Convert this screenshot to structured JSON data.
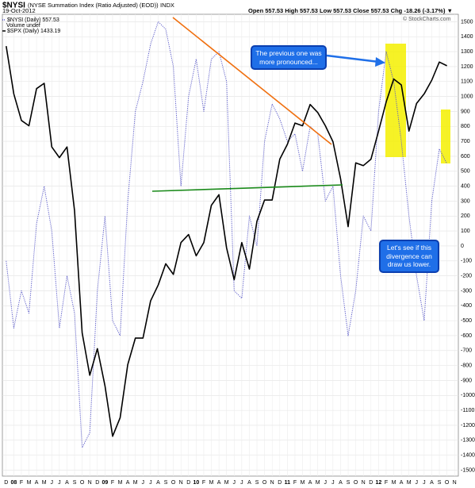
{
  "chart_data": {
    "type": "line",
    "symbol": "$NYSI",
    "title": "(NYSE Summation Index (Ratio Adjusted) (EOD))",
    "exchange": "INDX",
    "date": "19-Oct-2012",
    "quote": "Open 557.53  High 557.53  Low 557.53  Close 557.53  Chg -18.26 (-3.17%) ▼",
    "source": "© StockCharts.com",
    "volume_label": "Volume undef",
    "annotations": [
      "The previous one was more pronounced...",
      "Let's see if this divergence can draw us lower."
    ],
    "categories": [
      "D",
      "08",
      "F",
      "M",
      "A",
      "M",
      "J",
      "J",
      "A",
      "S",
      "O",
      "N",
      "D",
      "09",
      "F",
      "M",
      "A",
      "M",
      "J",
      "J",
      "A",
      "S",
      "O",
      "N",
      "D",
      "10",
      "F",
      "M",
      "A",
      "M",
      "J",
      "J",
      "A",
      "S",
      "O",
      "N",
      "D",
      "11",
      "F",
      "M",
      "A",
      "M",
      "J",
      "J",
      "A",
      "S",
      "O",
      "N",
      "D",
      "12",
      "F",
      "M",
      "A",
      "M",
      "J",
      "J",
      "A",
      "S",
      "O",
      "N"
    ],
    "series": [
      {
        "name": "$NYSI (Daily) 557.53",
        "color": "#5a5ac8",
        "values": [
          -100,
          -550,
          -300,
          -450,
          150,
          400,
          100,
          -550,
          -200,
          -450,
          -1350,
          -1250,
          -300,
          200,
          -500,
          -600,
          300,
          900,
          1100,
          1350,
          1500,
          1450,
          1200,
          400,
          1000,
          1250,
          900,
          1250,
          1300,
          1100,
          -300,
          -350,
          200,
          0,
          700,
          950,
          850,
          700,
          750,
          500,
          800,
          750,
          300,
          400,
          -200,
          -600,
          -300,
          200,
          100,
          900,
          1300,
          1100,
          700,
          200,
          -200,
          -500,
          300,
          650,
          550,
          null
        ]
      },
      {
        "name": "$SPX (Daily) 1433.19",
        "color": "#000000",
        "axis": "y2",
        "values": [
          1470,
          1380,
          1330,
          1320,
          1390,
          1400,
          1280,
          1260,
          1280,
          1160,
          930,
          850,
          900,
          830,
          735,
          770,
          870,
          920,
          920,
          990,
          1020,
          1060,
          1040,
          1100,
          1115,
          1075,
          1100,
          1170,
          1190,
          1090,
          1030,
          1100,
          1050,
          1140,
          1180,
          1180,
          1257,
          1285,
          1325,
          1320,
          1360,
          1345,
          1320,
          1290,
          1220,
          1130,
          1250,
          1245,
          1257,
          1310,
          1365,
          1408,
          1397,
          1310,
          1362,
          1380,
          1406,
          1440,
          1433,
          null
        ]
      }
    ],
    "ylim": [
      -1540,
      1550
    ],
    "y2lim": [
      660,
      1530
    ],
    "yticks": [
      1500,
      1400,
      1300,
      1200,
      1100,
      1000,
      900,
      800,
      700,
      600,
      500,
      400,
      300,
      200,
      100,
      0,
      -100,
      -200,
      -300,
      -400,
      -500,
      -600,
      -700,
      -800,
      -900,
      -1000,
      -1100,
      -1200,
      -1300,
      -1400,
      -1500
    ],
    "grid": true
  }
}
